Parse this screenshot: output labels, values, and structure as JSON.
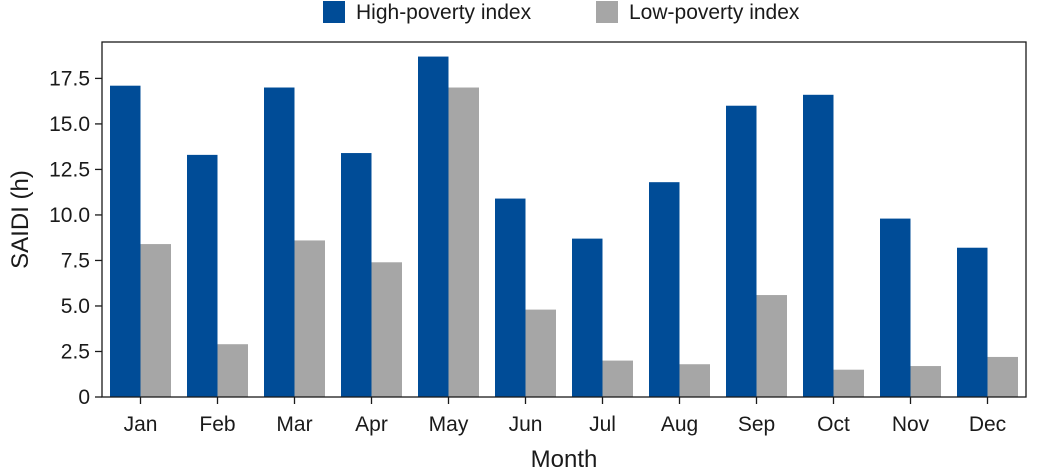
{
  "chart_data": {
    "type": "bar",
    "xlabel": "Month",
    "ylabel": "SAIDI (h)",
    "categories": [
      "Jan",
      "Feb",
      "Mar",
      "Apr",
      "May",
      "Jun",
      "Jul",
      "Aug",
      "Sep",
      "Oct",
      "Nov",
      "Dec"
    ],
    "series": [
      {
        "name": "High-poverty index",
        "color": "#004c97",
        "values": [
          17.1,
          13.3,
          17.0,
          13.4,
          18.7,
          10.9,
          8.7,
          11.8,
          16.0,
          16.6,
          9.8,
          8.2
        ]
      },
      {
        "name": "Low-poverty index",
        "color": "#a6a6a6",
        "values": [
          8.4,
          2.9,
          8.6,
          7.4,
          17.0,
          4.8,
          2.0,
          1.8,
          5.6,
          1.5,
          1.7,
          2.2
        ]
      }
    ],
    "ylim": [
      0,
      19.5
    ],
    "yticks": [
      "0",
      "2.5",
      "5.0",
      "7.5",
      "10.0",
      "12.5",
      "15.0",
      "17.5"
    ],
    "legend_position": "top-center",
    "grid": false
  }
}
